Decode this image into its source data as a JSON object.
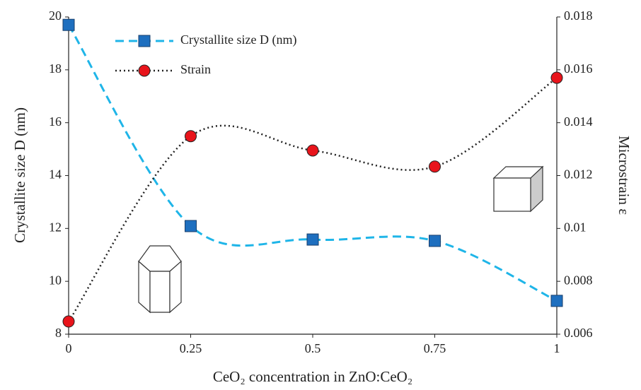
{
  "chart_data": {
    "type": "line",
    "x_label": "CeO₂ concentration in ZnO:CeO₂",
    "y_label": "Crystallite size D (nm)",
    "y2_label": "Microstrain ε",
    "x": [
      0,
      0.25,
      0.5,
      0.75,
      1
    ],
    "xlim": [
      0,
      1
    ],
    "xticks": [
      0,
      0.25,
      0.5,
      0.75,
      1
    ],
    "ylim": [
      8,
      20
    ],
    "yticks": [
      8,
      10,
      12,
      14,
      16,
      18,
      20
    ],
    "y2lim": [
      0.006,
      0.018
    ],
    "y2ticks": [
      0.006,
      0.008,
      0.01,
      0.012,
      0.014,
      0.016,
      0.018
    ],
    "legend": "upper left",
    "series": [
      {
        "name": "Crystallite size D (nm)",
        "color": "#1fb5e8",
        "marker_color": "#1e6fbf",
        "line_style": "dashed",
        "marker": "square",
        "values": [
          19.7,
          12.09,
          11.58,
          11.53,
          9.26
        ]
      },
      {
        "name": "Strain",
        "color": "#222222",
        "marker_color": "#e8141b",
        "line_style": "dotted",
        "marker": "circle",
        "axis": "y2",
        "values": [
          0.00648,
          0.01349,
          0.01295,
          0.01234,
          0.0157
        ]
      }
    ]
  }
}
